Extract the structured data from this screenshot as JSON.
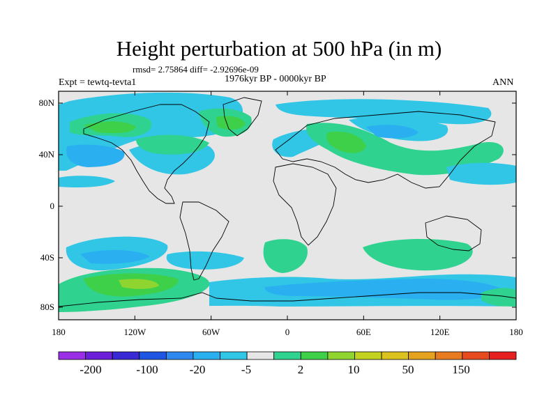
{
  "title": "Height perturbation at 500 hPa (in m)",
  "stats": "rmsd= 2.75864 diff= -2.92696e-09",
  "left_label": "Expt = tewtq-tevta1",
  "center_label": "1976kyr BP - 0000kyr BP",
  "right_label": "ANN",
  "lat_ticks": [
    "80N",
    "40N",
    "0",
    "40S",
    "80S"
  ],
  "lon_ticks": [
    "180",
    "120W",
    "60W",
    "0",
    "60E",
    "120E",
    "180"
  ],
  "colorbar": {
    "colors": [
      "#9a2fe6",
      "#6c1fd9",
      "#3a2ad6",
      "#1f55e3",
      "#2f87f0",
      "#2ab0f0",
      "#31c6e6",
      "#e6e6e6",
      "#2fd28f",
      "#3fd04a",
      "#8fd42f",
      "#c3d21f",
      "#dcc21f",
      "#e4a21f",
      "#e87a1f",
      "#e84a1f",
      "#e61f1f"
    ],
    "labels": [
      "-200",
      "-100",
      "-20",
      "-5",
      "2",
      "10",
      "50",
      "150"
    ]
  },
  "colors": {
    "neutral": "#e6e6e6",
    "light_blue": "#31c6e6",
    "blue": "#2ab0f0",
    "green_blue": "#2fd28f",
    "green": "#3fd04a",
    "yellow_green": "#8fd42f"
  }
}
